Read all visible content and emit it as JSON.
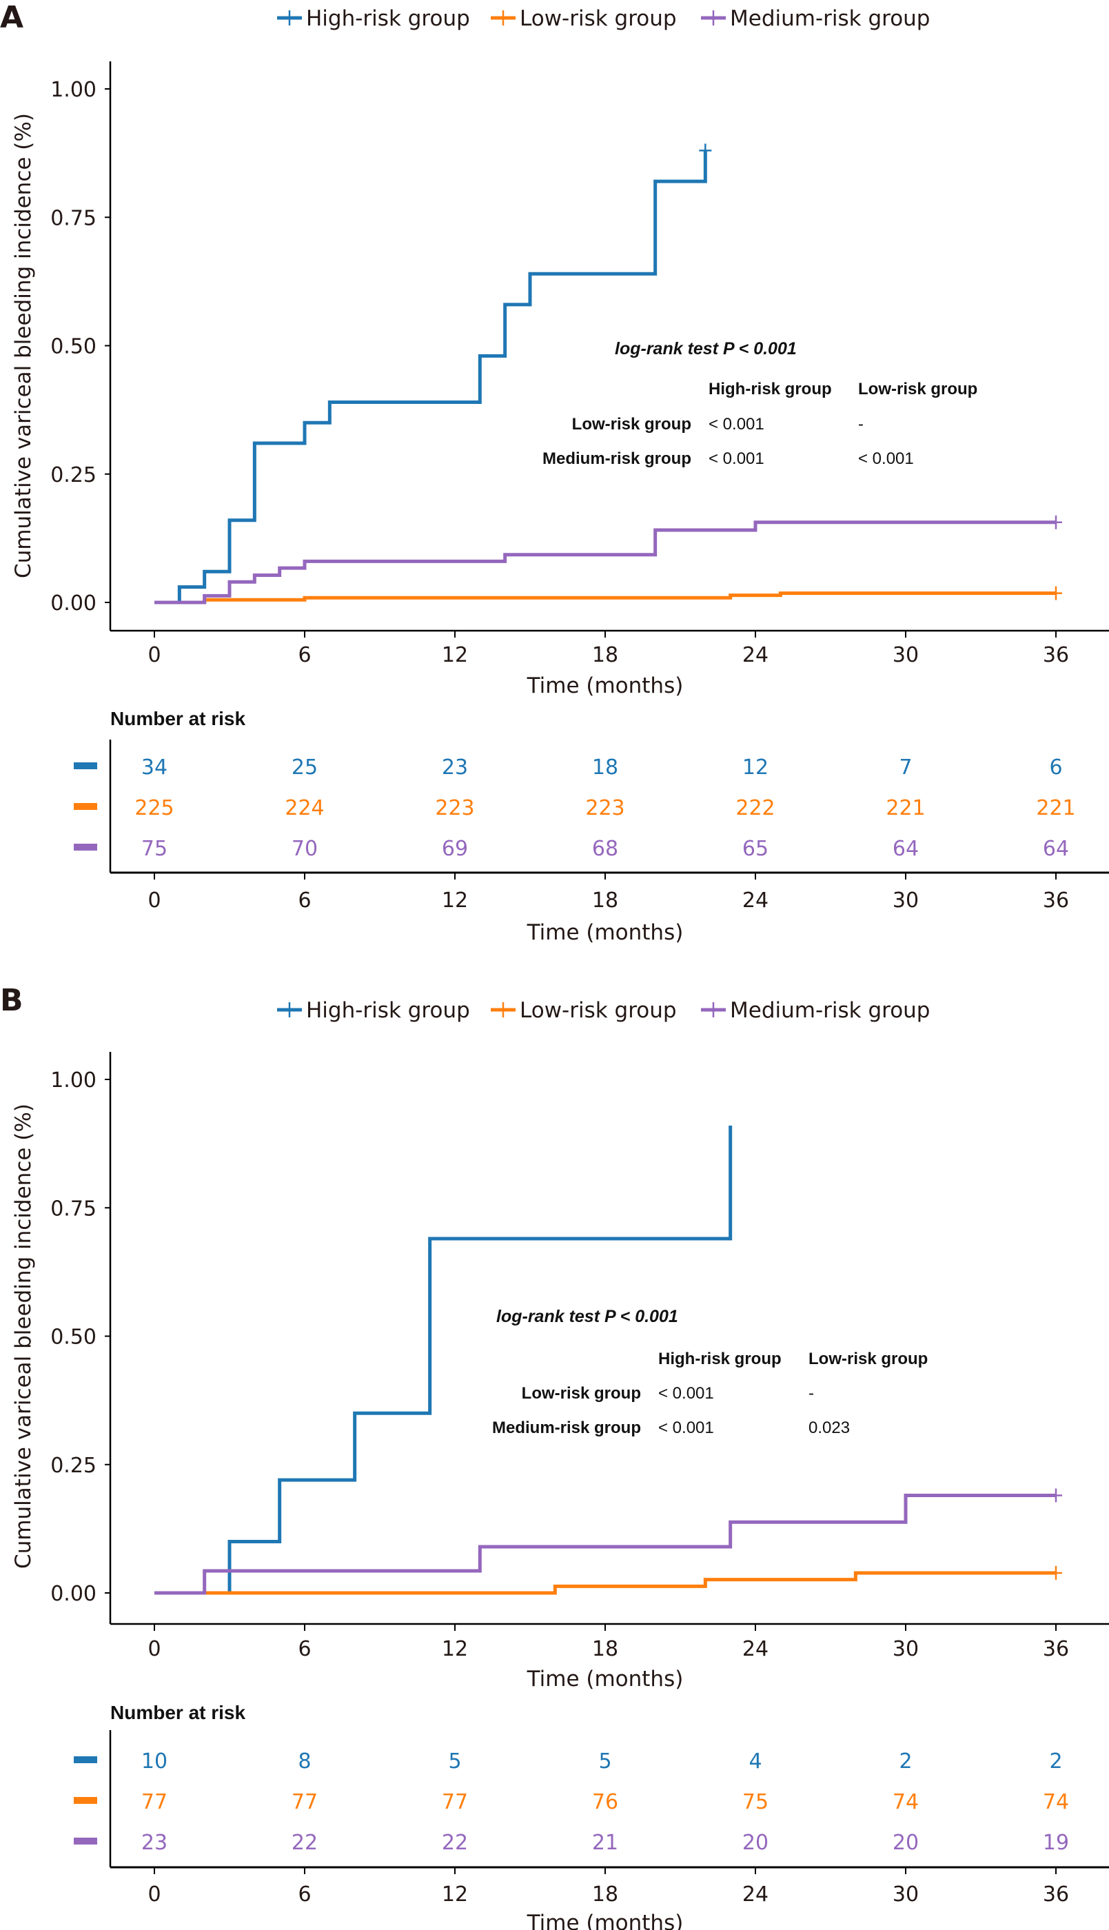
{
  "chart_data": [
    {
      "type": "line",
      "panel_label": "A",
      "title": "",
      "xlabel": "Time (months)",
      "ylabel": "Cumulative variceal bleeding incidence (%)",
      "xlim": [
        0,
        36
      ],
      "ylim": [
        0,
        1
      ],
      "x_ticks": [
        "0",
        "6",
        "12",
        "18",
        "24",
        "30",
        "36"
      ],
      "y_ticks": [
        "0.00",
        "0.25",
        "0.50",
        "0.75",
        "1.00"
      ],
      "legend": {
        "position": "top",
        "entries": [
          "High-risk group",
          "Low-risk group",
          "Medium-risk group"
        ]
      },
      "series": [
        {
          "name": "High-risk group",
          "color": "#1f77b4",
          "step": "post",
          "points": [
            [
              0,
              0
            ],
            [
              1,
              0.03
            ],
            [
              2,
              0.06
            ],
            [
              3,
              0.16
            ],
            [
              4,
              0.31
            ],
            [
              6,
              0.35
            ],
            [
              7,
              0.39
            ],
            [
              13,
              0.48
            ],
            [
              14,
              0.58
            ],
            [
              15,
              0.64
            ],
            [
              20,
              0.82
            ],
            [
              22,
              0.88
            ]
          ],
          "censor": [
            22
          ]
        },
        {
          "name": "Low-risk group",
          "color": "#ff7f0e",
          "step": "post",
          "points": [
            [
              0,
              0
            ],
            [
              2,
              0.005
            ],
            [
              6,
              0.009
            ],
            [
              23,
              0.014
            ],
            [
              25,
              0.018
            ],
            [
              36,
              0.018
            ]
          ],
          "censor": [
            36
          ]
        },
        {
          "name": "Medium-risk group",
          "color": "#9467bd",
          "step": "post",
          "points": [
            [
              0,
              0
            ],
            [
              2,
              0.013
            ],
            [
              3,
              0.04
            ],
            [
              4,
              0.053
            ],
            [
              5,
              0.067
            ],
            [
              6,
              0.08
            ],
            [
              14,
              0.093
            ],
            [
              20,
              0.141
            ],
            [
              24,
              0.156
            ],
            [
              36,
              0.156
            ]
          ],
          "censor": [
            36
          ]
        }
      ],
      "annotation": {
        "title": "log-rank test P < 0.001",
        "col_headers": [
          "High-risk group",
          "Low-risk group"
        ],
        "rows": [
          {
            "label": "Low-risk group",
            "values": [
              "< 0.001",
              "-"
            ]
          },
          {
            "label": "Medium-risk group",
            "values": [
              "< 0.001",
              "< 0.001"
            ]
          }
        ]
      },
      "risk_table": {
        "title": "Number at risk",
        "times": [
          "0",
          "6",
          "12",
          "18",
          "24",
          "30",
          "36"
        ],
        "xlabel": "Time (months)",
        "rows": [
          {
            "group": "High-risk group",
            "color": "#1f77b4",
            "values": [
              "34",
              "25",
              "23",
              "18",
              "12",
              "7",
              "6"
            ]
          },
          {
            "group": "Low-risk group",
            "color": "#ff7f0e",
            "values": [
              "225",
              "224",
              "223",
              "223",
              "222",
              "221",
              "221"
            ]
          },
          {
            "group": "Medium-risk group",
            "color": "#9467bd",
            "values": [
              "75",
              "70",
              "69",
              "68",
              "65",
              "64",
              "64"
            ]
          }
        ]
      }
    },
    {
      "type": "line",
      "panel_label": "B",
      "title": "",
      "xlabel": "Time (months)",
      "ylabel": "Cumulative variceal bleeding incidence (%)",
      "xlim": [
        0,
        36
      ],
      "ylim": [
        0,
        1
      ],
      "x_ticks": [
        "0",
        "6",
        "12",
        "18",
        "24",
        "30",
        "36"
      ],
      "y_ticks": [
        "0.00",
        "0.25",
        "0.50",
        "0.75",
        "1.00"
      ],
      "legend": {
        "position": "top",
        "entries": [
          "High-risk group",
          "Low-risk group",
          "Medium-risk group"
        ]
      },
      "series": [
        {
          "name": "High-risk group",
          "color": "#1f77b4",
          "step": "post",
          "points": [
            [
              0,
              0
            ],
            [
              3,
              0.1
            ],
            [
              5,
              0.22
            ],
            [
              8,
              0.35
            ],
            [
              11,
              0.69
            ],
            [
              23,
              0.91
            ]
          ],
          "censor": []
        },
        {
          "name": "Low-risk group",
          "color": "#ff7f0e",
          "step": "post",
          "points": [
            [
              0,
              0
            ],
            [
              16,
              0.013
            ],
            [
              22,
              0.026
            ],
            [
              28,
              0.039
            ],
            [
              36,
              0.039
            ]
          ],
          "censor": [
            36
          ]
        },
        {
          "name": "Medium-risk group",
          "color": "#9467bd",
          "step": "post",
          "points": [
            [
              0,
              0
            ],
            [
              2,
              0.043
            ],
            [
              13,
              0.09
            ],
            [
              23,
              0.138
            ],
            [
              30,
              0.19
            ],
            [
              36,
              0.19
            ]
          ],
          "censor": [
            36
          ]
        }
      ],
      "annotation": {
        "title": "log-rank test P < 0.001",
        "col_headers": [
          "High-risk group",
          "Low-risk group"
        ],
        "rows": [
          {
            "label": "Low-risk group",
            "values": [
              "< 0.001",
              "-"
            ]
          },
          {
            "label": "Medium-risk group",
            "values": [
              "< 0.001",
              "0.023"
            ]
          }
        ]
      },
      "risk_table": {
        "title": "Number at risk",
        "times": [
          "0",
          "6",
          "12",
          "18",
          "24",
          "30",
          "36"
        ],
        "xlabel": "Time (months)",
        "rows": [
          {
            "group": "High-risk group",
            "color": "#1f77b4",
            "values": [
              "10",
              "8",
              "5",
              "5",
              "4",
              "2",
              "2"
            ]
          },
          {
            "group": "Low-risk group",
            "color": "#ff7f0e",
            "values": [
              "77",
              "77",
              "77",
              "76",
              "75",
              "74",
              "74"
            ]
          },
          {
            "group": "Medium-risk group",
            "color": "#9467bd",
            "values": [
              "23",
              "22",
              "22",
              "21",
              "20",
              "20",
              "19"
            ]
          }
        ]
      }
    }
  ]
}
